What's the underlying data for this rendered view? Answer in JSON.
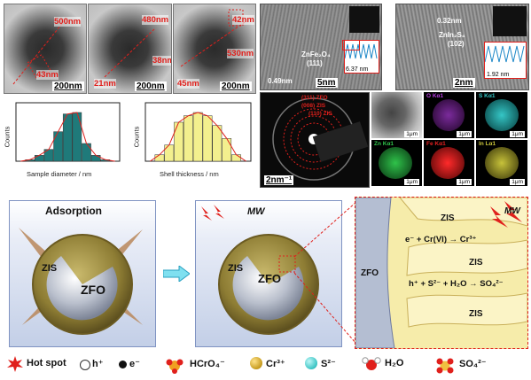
{
  "tem_images": [
    {
      "lbl1": "500nm",
      "lbl2": "43nm",
      "scale": "200nm"
    },
    {
      "lbl1": "480nm",
      "lbl2": "21nm",
      "lbl3": "38nm",
      "scale": "200nm"
    },
    {
      "lbl1": "42nm",
      "lbl2": "530nm",
      "lbl3": "45nm",
      "scale": "200nm"
    }
  ],
  "hrtem": {
    "left": {
      "phase": "ZnFe₂O₄",
      "plane": "(111)",
      "spacing": "0.49nm",
      "fft_spacing": "6.37 nm",
      "scale": "5nm"
    },
    "right": {
      "spacing": "0.32nm",
      "phase": "ZnIn₂S₄",
      "plane": "(102)",
      "fft_spacing": "1.92 nm",
      "scale": "2nm"
    }
  },
  "saed": {
    "rings": [
      "(311) ZFO",
      "(008) ZIS",
      "(110) ZIS"
    ],
    "scale": "2nm⁻¹"
  },
  "eds_maps": [
    {
      "title": "",
      "scale": "1μm",
      "color": "#d0d0d0"
    },
    {
      "title": "O Kα1",
      "scale": "1μm",
      "color": "#b43cdc"
    },
    {
      "title": "S Kα1",
      "scale": "1μm",
      "color": "#35c6c6"
    },
    {
      "title": "Zn Kα1",
      "scale": "1μm",
      "color": "#2fc24a"
    },
    {
      "title": "Fe Kα1",
      "scale": "1μm",
      "color": "#e52020"
    },
    {
      "title": "In Lα1",
      "scale": "1μm",
      "color": "#c7c23a"
    }
  ],
  "chart_data": [
    {
      "type": "bar",
      "xlabel": "Sample diameter / nm",
      "ylabel": "Counts",
      "categories": [
        "",
        "",
        "",
        "",
        "",
        "",
        "",
        "",
        ""
      ],
      "values": [
        1,
        4,
        8,
        20,
        32,
        33,
        12,
        4,
        1
      ],
      "color": "#1f7a7a",
      "fit_color": "#e0201c"
    },
    {
      "type": "bar",
      "xlabel": "Shell thickness / nm",
      "ylabel": "Counts",
      "categories": [
        "",
        "",
        "",
        "",
        "",
        "",
        "",
        "",
        ""
      ],
      "values": [
        2,
        5,
        12,
        14,
        15,
        14,
        11,
        7,
        2
      ],
      "color": "#f3ef8e",
      "fit_color": "#e0201c"
    }
  ],
  "scheme": {
    "panel1": {
      "title": "Adsorption",
      "shell": "ZIS",
      "core": "ZFO"
    },
    "panel2": {
      "mw": "MW",
      "shell": "ZIS",
      "core": "ZFO"
    },
    "panel3": {
      "core": "ZFO",
      "mw": "MW",
      "zis_labels": [
        "ZIS",
        "ZIS",
        "ZIS"
      ],
      "reaction1_lhs": "e⁻ + Cr(VI) →",
      "reaction1_rhs": "Cr³⁺",
      "reaction2": "h⁺ + S²⁻ + H₂O → SO₄²⁻"
    }
  },
  "legend": [
    {
      "label": "Hot spot",
      "icon": "hot-spot-icon"
    },
    {
      "label": "h⁺",
      "icon": "hole-icon"
    },
    {
      "label": "e⁻",
      "icon": "electron-icon"
    },
    {
      "label": "HCrO₄⁻",
      "icon": "hcro4-icon"
    },
    {
      "label": "Cr³⁺",
      "icon": "cr3-icon"
    },
    {
      "label": "S²⁻",
      "icon": "s2-icon"
    },
    {
      "label": "H₂O",
      "icon": "h2o-icon"
    },
    {
      "label": "SO₄²⁻",
      "icon": "so4-icon"
    }
  ]
}
